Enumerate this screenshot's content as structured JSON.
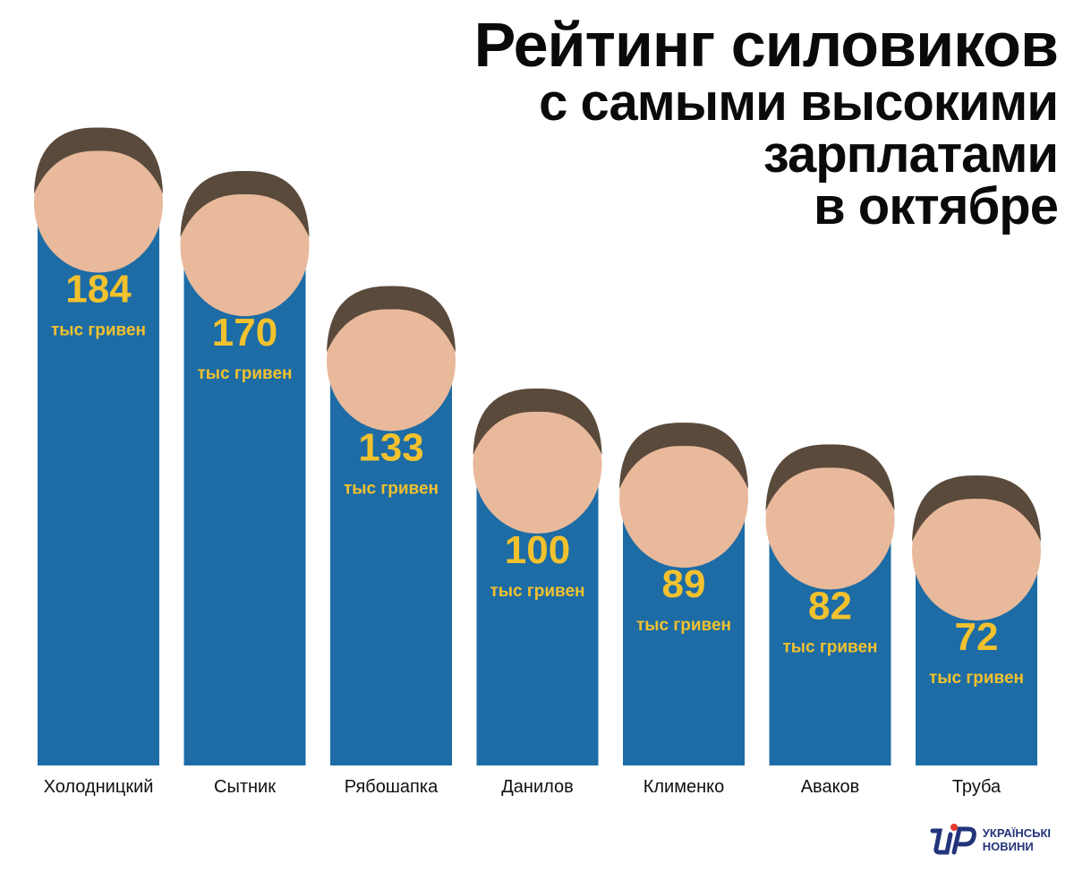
{
  "title": {
    "line1": "Рейтинг силовиков",
    "line2": "с самыми высокими",
    "line3": "зарплатами",
    "line4": "в октябре"
  },
  "logo": {
    "line1": "УКРАЇНСЬКІ",
    "line2": "НОВИНИ"
  },
  "colors": {
    "bar": "#1d6ca5",
    "value": "#f2c12e",
    "unit": "#f2c12e",
    "face": "#e9b99b",
    "hair": "#5a4a3c"
  },
  "chart_data": {
    "type": "bar",
    "categories": [
      "Холодницкий",
      "Сытник",
      "Рябошапка",
      "Данилов",
      "Клименко",
      "Аваков",
      "Труба"
    ],
    "values": [
      184,
      170,
      133,
      100,
      89,
      82,
      72
    ],
    "value_labels": [
      "184",
      "170",
      "133",
      "100",
      "89",
      "82",
      "72"
    ],
    "unit_label": "тыс гривен",
    "ylim": [
      0,
      190
    ],
    "grid": false
  }
}
